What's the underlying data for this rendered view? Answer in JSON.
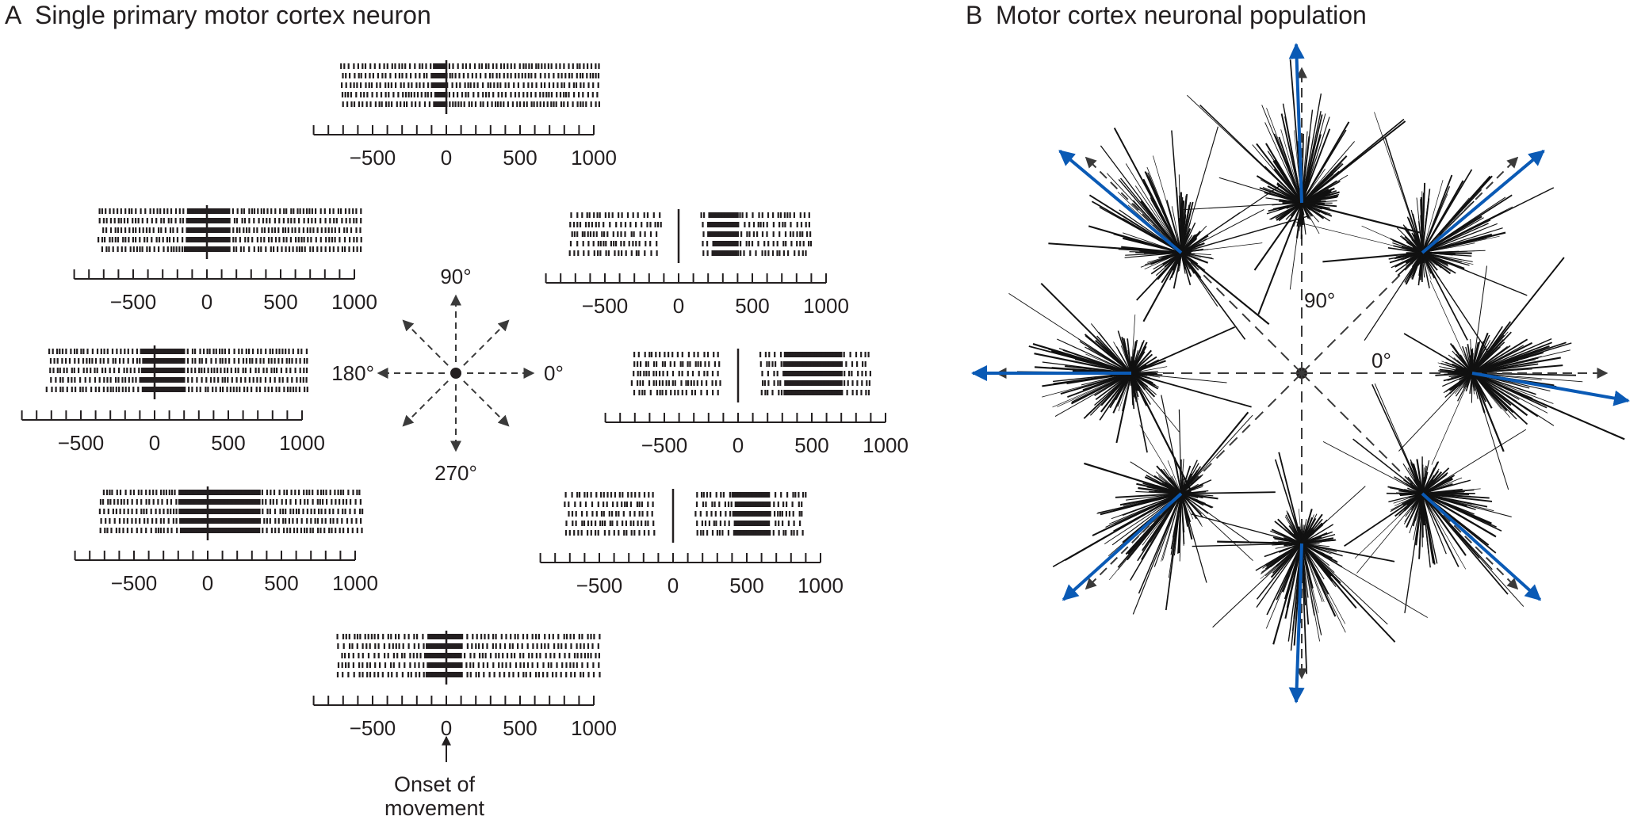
{
  "panel_a": {
    "letter": "A",
    "title": "Single primary motor cortex neuron",
    "axis_ticks": [
      "−500",
      "0",
      "500",
      "1000"
    ],
    "directions": {
      "d90": "90°",
      "d180": "180°",
      "d0": "0°",
      "d270": "270°"
    },
    "onset_label_line1": "Onset of",
    "onset_label_line2": "movement",
    "rasters": [
      {
        "direction_deg": 90,
        "trials": 5,
        "activity": "high",
        "burst_start_ms": -100,
        "burst_end_ms": 0
      },
      {
        "direction_deg": 135,
        "trials": 5,
        "activity": "high",
        "burst_start_ms": -150,
        "burst_end_ms": 150
      },
      {
        "direction_deg": 180,
        "trials": 5,
        "activity": "high",
        "burst_start_ms": -100,
        "burst_end_ms": 200
      },
      {
        "direction_deg": 225,
        "trials": 5,
        "activity": "high",
        "burst_start_ms": -200,
        "burst_end_ms": 350
      },
      {
        "direction_deg": 270,
        "trials": 5,
        "activity": "medium",
        "burst_start_ms": -150,
        "burst_end_ms": 100
      },
      {
        "direction_deg": 315,
        "trials": 5,
        "activity": "low",
        "burst_start_ms": 400,
        "burst_end_ms": 650
      },
      {
        "direction_deg": 0,
        "trials": 5,
        "activity": "low",
        "burst_start_ms": 300,
        "burst_end_ms": 700
      },
      {
        "direction_deg": 45,
        "trials": 5,
        "activity": "low",
        "burst_start_ms": 200,
        "burst_end_ms": 400
      }
    ]
  },
  "panel_b": {
    "letter": "B",
    "title": "Motor cortex neuronal population",
    "label_90": "90°",
    "label_0": "0°",
    "population_vectors": [
      {
        "direction_deg": 0,
        "vector_deg": -10
      },
      {
        "direction_deg": 45,
        "vector_deg": 40
      },
      {
        "direction_deg": 90,
        "vector_deg": 92
      },
      {
        "direction_deg": 135,
        "vector_deg": 140
      },
      {
        "direction_deg": 180,
        "vector_deg": 180
      },
      {
        "direction_deg": 225,
        "vector_deg": 222
      },
      {
        "direction_deg": 270,
        "vector_deg": 268
      },
      {
        "direction_deg": 315,
        "vector_deg": 318
      }
    ],
    "vector_color": "#0a5ab5",
    "dashed_color": "#3a3a3a"
  }
}
